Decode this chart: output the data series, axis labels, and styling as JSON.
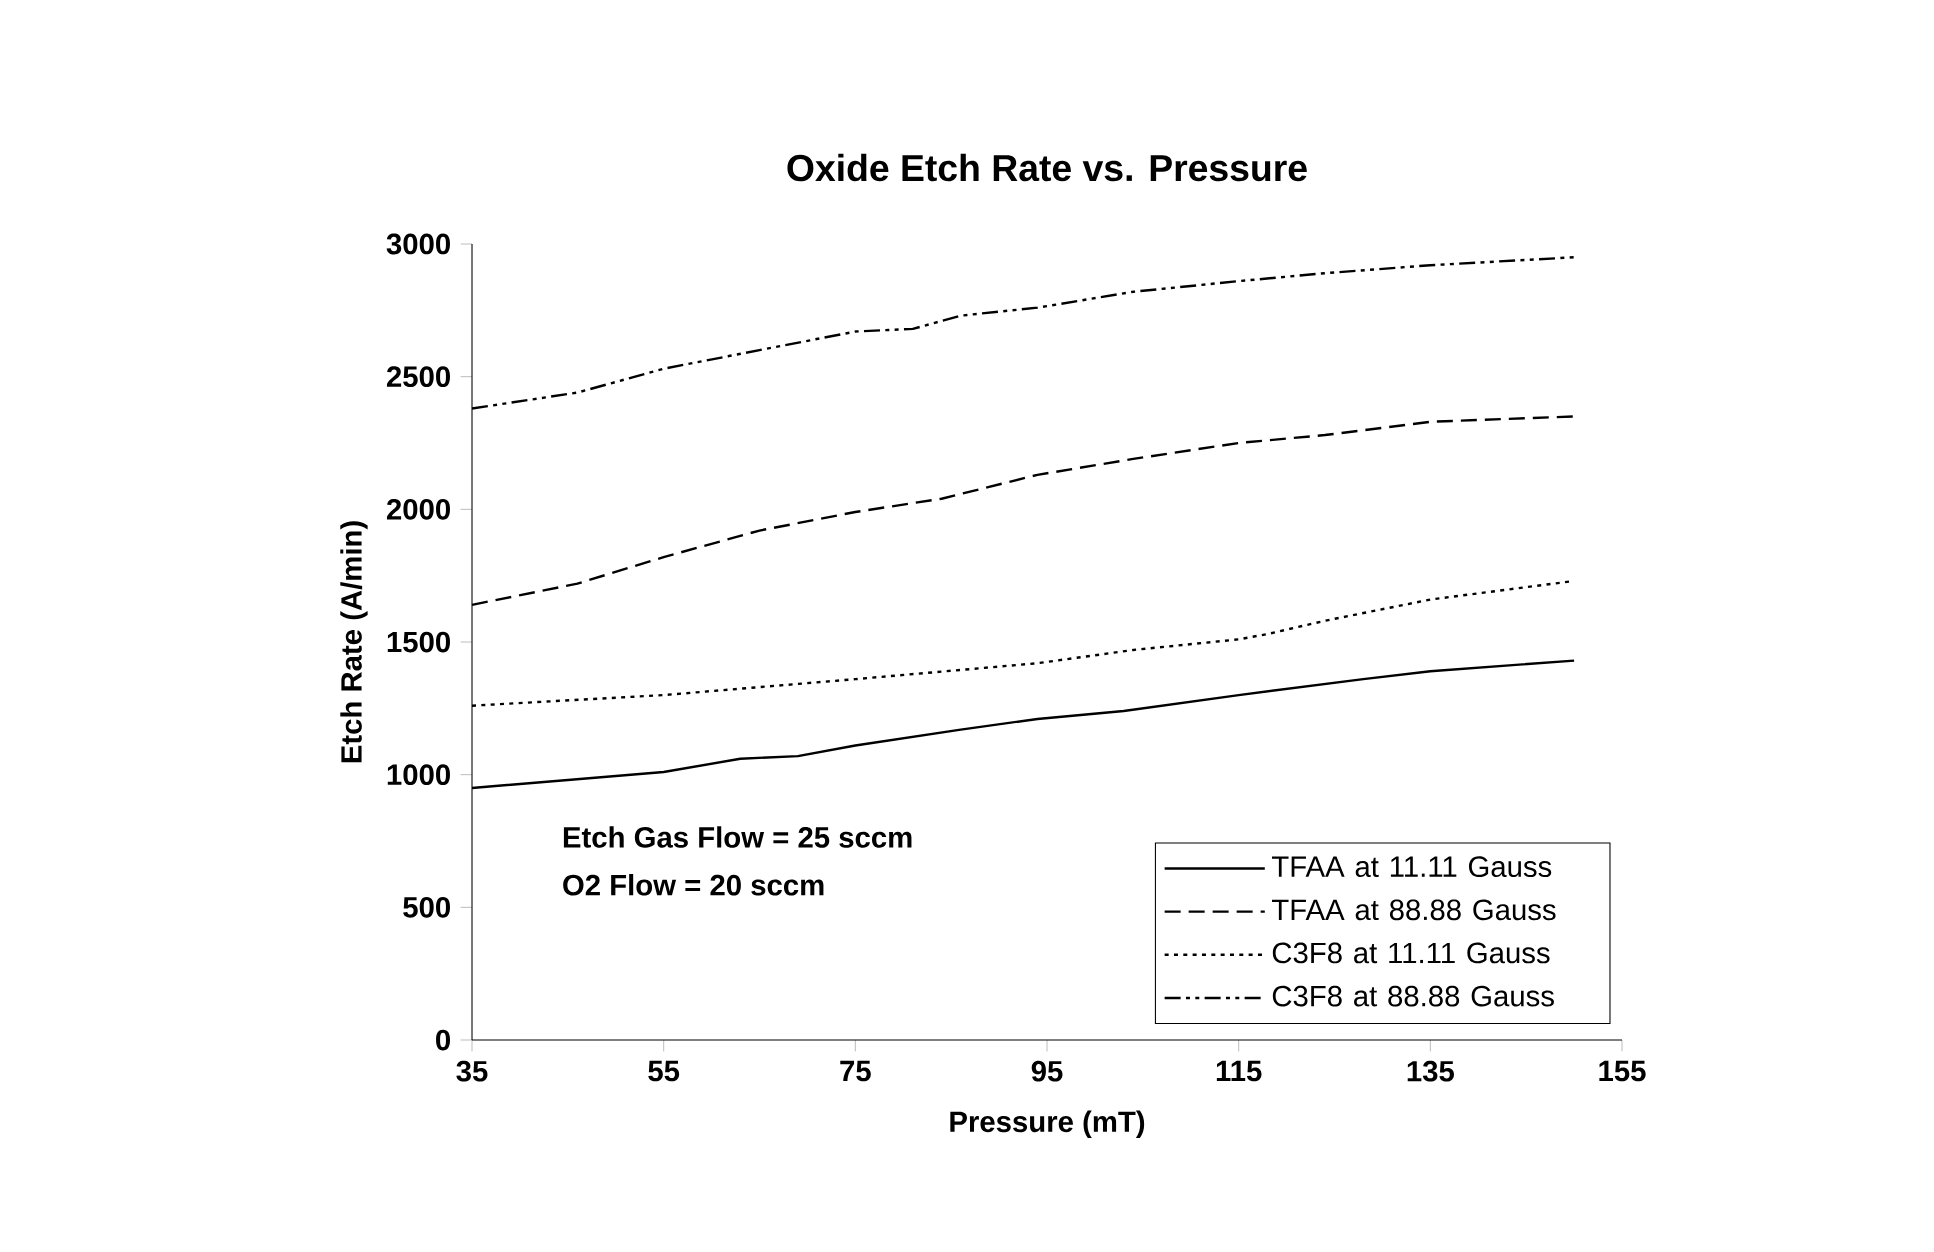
{
  "chart_data": {
    "type": "line",
    "title": "Oxide Etch Rate vs. Pressure",
    "xlabel": "Pressure (mT)",
    "ylabel": "Etch Rate (A/min)",
    "xlim": [
      35,
      155
    ],
    "xticks": [
      35,
      55,
      75,
      95,
      115,
      135,
      155
    ],
    "ylim": [
      0,
      3000
    ],
    "yticks": [
      0,
      500,
      1000,
      1500,
      2000,
      2500,
      3000
    ],
    "legend": "bottom right",
    "marker": "none",
    "annotations": [
      "Etch Gas Flow = 25 sccm",
      "O2 Flow = 20 sccm"
    ],
    "series": [
      {
        "name": "TFAA at 11.11 Gauss",
        "color": "#000000",
        "line_style": "solid",
        "x": [
          35,
          55,
          63,
          69,
          75,
          86,
          94,
          103,
          115,
          128,
          135,
          150
        ],
        "values": [
          950,
          1010,
          1060,
          1070,
          1110,
          1170,
          1210,
          1240,
          1300,
          1360,
          1390,
          1430
        ]
      },
      {
        "name": "TFAA at 88.88 Gauss",
        "color": "#000000",
        "line_style": "dashed",
        "x": [
          35,
          46,
          55,
          65,
          75,
          84,
          94,
          104,
          115,
          124,
          135,
          150
        ],
        "values": [
          1640,
          1720,
          1820,
          1920,
          1990,
          2040,
          2130,
          2190,
          2250,
          2280,
          2330,
          2350
        ]
      },
      {
        "name": "C3F8 at 11.11 Gauss",
        "color": "#000000",
        "line_style": "dotted",
        "x": [
          35,
          55,
          65,
          75,
          94,
          104,
          115,
          118,
          124,
          135,
          150
        ],
        "values": [
          1260,
          1300,
          1330,
          1360,
          1420,
          1470,
          1510,
          1530,
          1580,
          1660,
          1730
        ]
      },
      {
        "name": "C3F8 at 88.88 Gauss",
        "color": "#000000",
        "line_style": "dashdotdotted",
        "x": [
          35,
          46,
          55,
          65,
          75,
          81,
          86,
          94,
          104,
          115,
          124,
          135,
          150
        ],
        "values": [
          2380,
          2440,
          2530,
          2600,
          2670,
          2680,
          2730,
          2760,
          2820,
          2860,
          2890,
          2920,
          2950
        ]
      }
    ]
  }
}
